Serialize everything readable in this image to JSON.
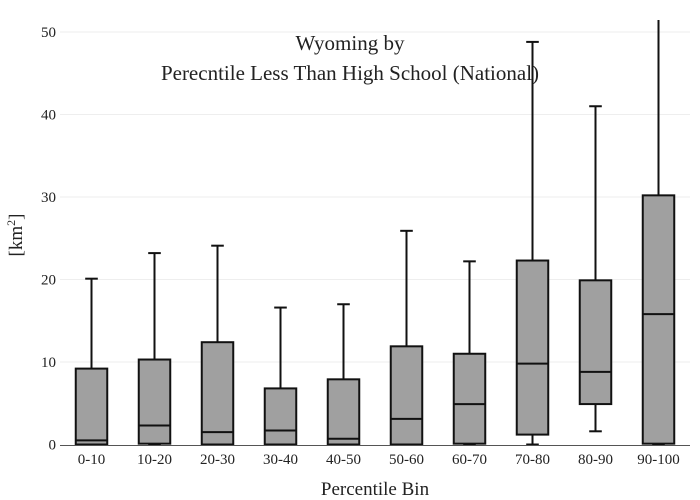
{
  "chart_data": {
    "type": "box",
    "title_line1": "Wyoming  by",
    "title_line2": "Perecntile Less Than High School (National)",
    "xlabel": "Percentile Bin",
    "ylabel_base": "[km",
    "ylabel_sup": "2",
    "ylabel_end": "]",
    "ylim": [
      0,
      50.5
    ],
    "yticks": [
      0,
      10,
      20,
      30,
      40,
      50
    ],
    "grid": true,
    "box_color": "#a0a0a0",
    "categories": [
      "0-10",
      "10-20",
      "20-30",
      "30-40",
      "40-50",
      "50-60",
      "60-70",
      "70-80",
      "80-90",
      "90-100"
    ],
    "boxes": [
      {
        "category": "0-10",
        "min": 0.0,
        "q1": 0.0,
        "median": 0.5,
        "q3": 9.2,
        "max": 20.1
      },
      {
        "category": "10-20",
        "min": 0.0,
        "q1": 0.1,
        "median": 2.3,
        "q3": 10.3,
        "max": 23.2
      },
      {
        "category": "20-30",
        "min": 0.0,
        "q1": 0.0,
        "median": 1.5,
        "q3": 12.4,
        "max": 24.1
      },
      {
        "category": "30-40",
        "min": 0.0,
        "q1": 0.0,
        "median": 1.7,
        "q3": 6.8,
        "max": 16.6
      },
      {
        "category": "40-50",
        "min": 0.0,
        "q1": 0.0,
        "median": 0.7,
        "q3": 7.9,
        "max": 17.0
      },
      {
        "category": "50-60",
        "min": 0.0,
        "q1": 0.0,
        "median": 3.1,
        "q3": 11.9,
        "max": 25.9
      },
      {
        "category": "60-70",
        "min": 0.0,
        "q1": 0.1,
        "median": 4.9,
        "q3": 11.0,
        "max": 22.2
      },
      {
        "category": "70-80",
        "min": 0.0,
        "q1": 1.2,
        "median": 9.8,
        "q3": 22.3,
        "max": 48.8
      },
      {
        "category": "80-90",
        "min": 1.6,
        "q1": 4.9,
        "median": 8.8,
        "q3": 19.9,
        "max": 41.0
      },
      {
        "category": "90-100",
        "min": 0.0,
        "q1": 0.1,
        "median": 15.8,
        "q3": 30.2,
        "max": 55.0
      }
    ]
  }
}
